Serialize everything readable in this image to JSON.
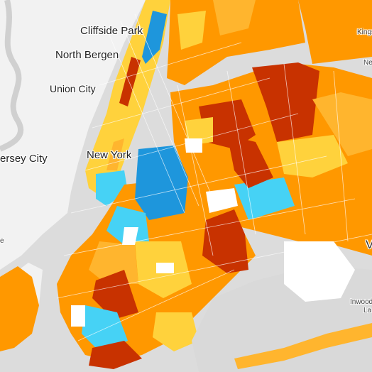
{
  "colors": {
    "land": "#ffffff",
    "water": "#d9d9d9",
    "outside": "#efefef",
    "choropleth": {
      "dark_red": "#c83200",
      "orange": "#ff9800",
      "light_orange": "#ffb52e",
      "yellow": "#ffd23c",
      "light_blue": "#46d2f5",
      "blue": "#1e96dc"
    },
    "streets": "#ffffff"
  },
  "labels": {
    "cliffside_park": "Cliffside Park",
    "north_bergen": "North Bergen",
    "union_city": "Union City",
    "jersey_city": "ersey City",
    "new_york": "New York",
    "inwood": "Inwood",
    "inwood_cut": "La",
    "kings_cut": "Kings",
    "right_cut_letter": "V",
    "left_cut_letter": "e",
    "small_cut": "Ne"
  }
}
